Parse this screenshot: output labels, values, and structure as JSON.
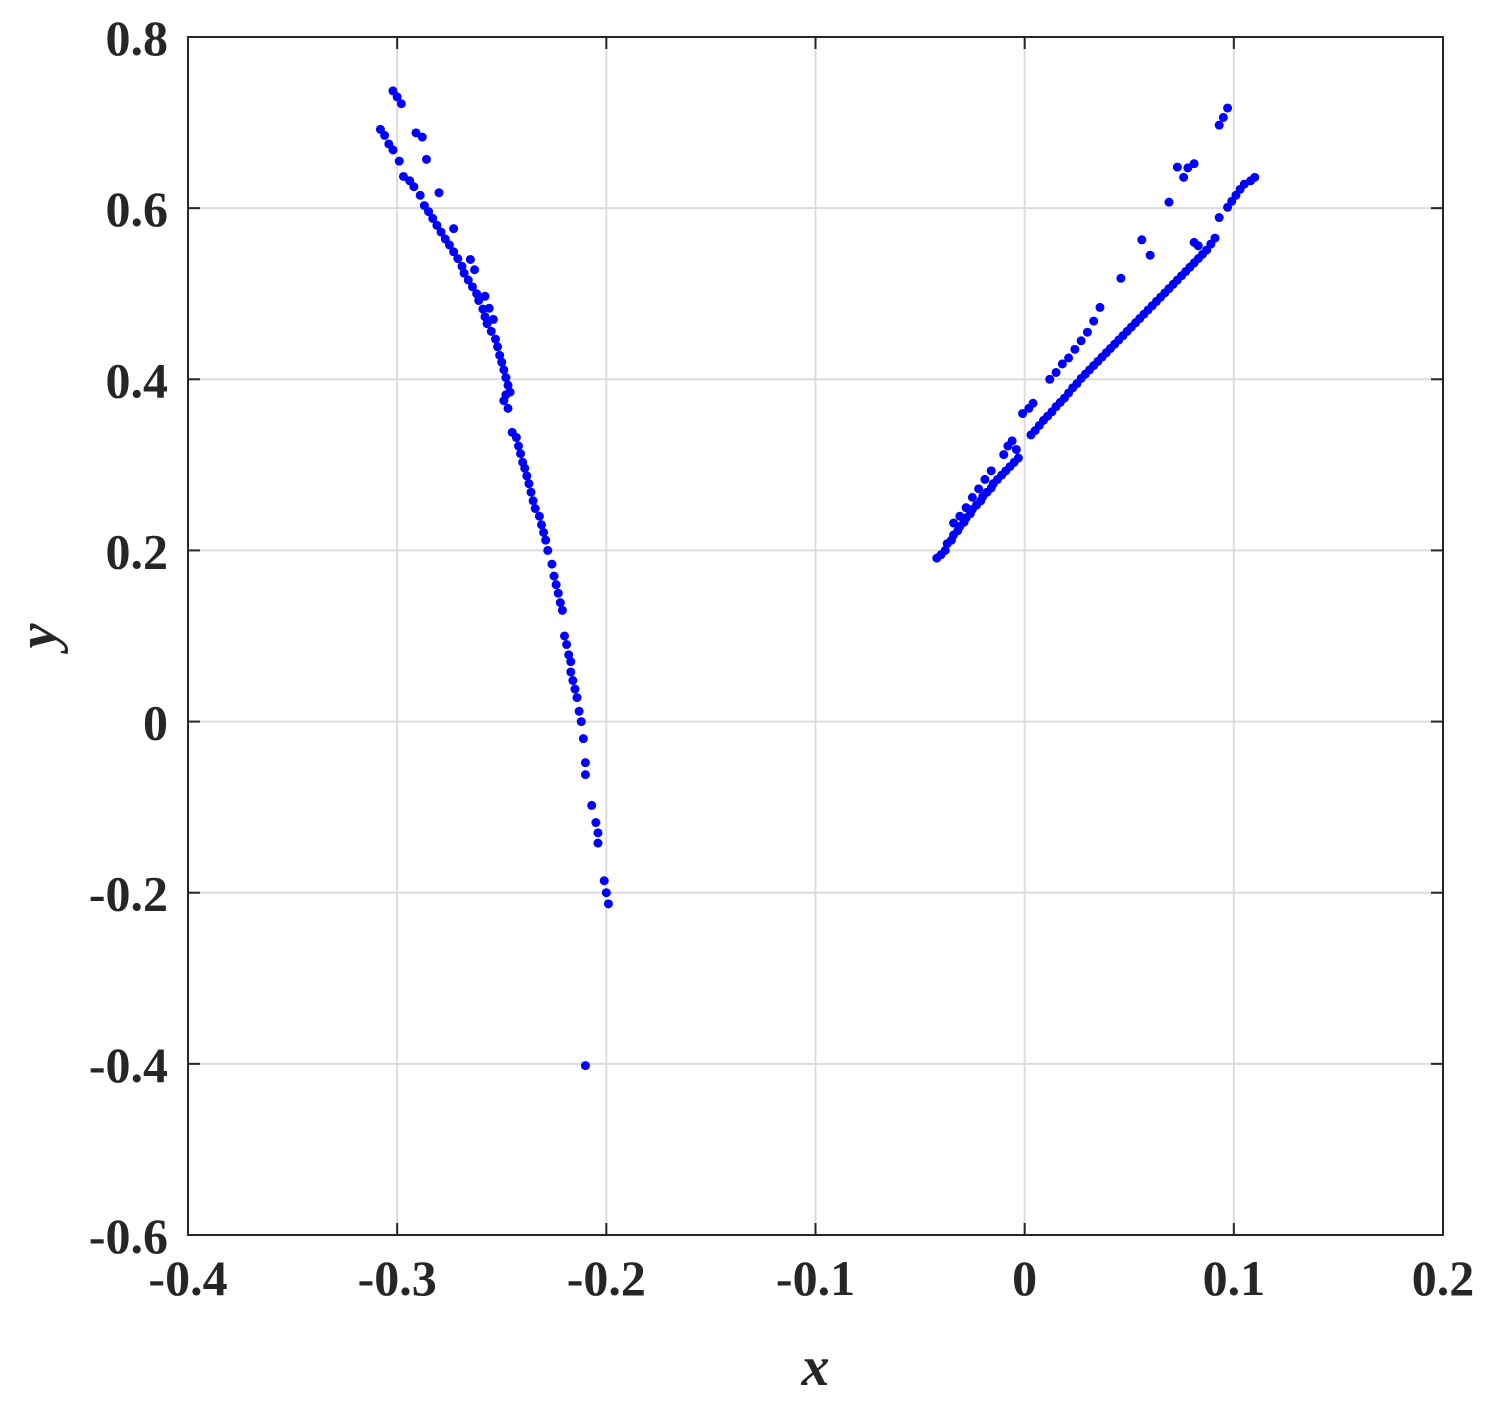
{
  "chart_data": {
    "type": "scatter",
    "xlabel": "x",
    "ylabel": "y",
    "xlim": [
      -0.4,
      0.2
    ],
    "ylim": [
      -0.6,
      0.8
    ],
    "grid": true,
    "x_ticks": [
      -0.4,
      -0.3,
      -0.2,
      -0.1,
      0,
      0.1,
      0.2
    ],
    "x_tick_labels": [
      "-0.4",
      "-0.3",
      "-0.2",
      "-0.1",
      "0",
      "0.1",
      "0.2"
    ],
    "y_ticks": [
      -0.6,
      -0.4,
      -0.2,
      0,
      0.2,
      0.4,
      0.6,
      0.8
    ],
    "y_tick_labels": [
      "-0.6",
      "-0.4",
      "-0.2",
      "0",
      "0.2",
      "0.4",
      "0.6",
      "0.8"
    ],
    "marker_color": "#0000ff",
    "series": [
      {
        "points": [
          [
            -0.302,
            0.737
          ],
          [
            -0.3,
            0.73
          ],
          [
            -0.298,
            0.722
          ],
          [
            -0.308,
            0.692
          ],
          [
            -0.306,
            0.685
          ],
          [
            -0.304,
            0.675
          ],
          [
            -0.302,
            0.668
          ],
          [
            -0.291,
            0.688
          ],
          [
            -0.288,
            0.683
          ],
          [
            -0.286,
            0.657
          ],
          [
            -0.299,
            0.655
          ],
          [
            -0.297,
            0.637
          ],
          [
            -0.294,
            0.632
          ],
          [
            -0.292,
            0.625
          ],
          [
            -0.289,
            0.615
          ],
          [
            -0.28,
            0.618
          ],
          [
            -0.287,
            0.603
          ],
          [
            -0.285,
            0.596
          ],
          [
            -0.283,
            0.588
          ],
          [
            -0.281,
            0.58
          ],
          [
            -0.279,
            0.572
          ],
          [
            -0.277,
            0.564
          ],
          [
            -0.273,
            0.576
          ],
          [
            -0.275,
            0.557
          ],
          [
            -0.273,
            0.549
          ],
          [
            -0.271,
            0.541
          ],
          [
            -0.269,
            0.532
          ],
          [
            -0.268,
            0.524
          ],
          [
            -0.266,
            0.516
          ],
          [
            -0.264,
            0.508
          ],
          [
            -0.265,
            0.54
          ],
          [
            -0.263,
            0.528
          ],
          [
            -0.262,
            0.5
          ],
          [
            -0.261,
            0.492
          ],
          [
            -0.259,
            0.482
          ],
          [
            -0.258,
            0.473
          ],
          [
            -0.257,
            0.465
          ],
          [
            -0.255,
            0.456
          ],
          [
            -0.258,
            0.497
          ],
          [
            -0.256,
            0.483
          ],
          [
            -0.254,
            0.47
          ],
          [
            -0.253,
            0.447
          ],
          [
            -0.252,
            0.438
          ],
          [
            -0.251,
            0.428
          ],
          [
            -0.25,
            0.42
          ],
          [
            -0.249,
            0.411
          ],
          [
            -0.248,
            0.402
          ],
          [
            -0.247,
            0.393
          ],
          [
            -0.248,
            0.382
          ],
          [
            -0.246,
            0.385
          ],
          [
            -0.249,
            0.375
          ],
          [
            -0.247,
            0.366
          ],
          [
            -0.245,
            0.338
          ],
          [
            -0.243,
            0.332
          ],
          [
            -0.242,
            0.322
          ],
          [
            -0.241,
            0.313
          ],
          [
            -0.24,
            0.303
          ],
          [
            -0.239,
            0.296
          ],
          [
            -0.238,
            0.287
          ],
          [
            -0.237,
            0.278
          ],
          [
            -0.236,
            0.268
          ],
          [
            -0.235,
            0.258
          ],
          [
            -0.234,
            0.249
          ],
          [
            -0.232,
            0.24
          ],
          [
            -0.231,
            0.23
          ],
          [
            -0.23,
            0.221
          ],
          [
            -0.229,
            0.212
          ],
          [
            -0.228,
            0.2
          ],
          [
            -0.226,
            0.184
          ],
          [
            -0.225,
            0.17
          ],
          [
            -0.224,
            0.16
          ],
          [
            -0.223,
            0.15
          ],
          [
            -0.222,
            0.139
          ],
          [
            -0.221,
            0.13
          ],
          [
            -0.22,
            0.1
          ],
          [
            -0.219,
            0.09
          ],
          [
            -0.218,
            0.078
          ],
          [
            -0.217,
            0.07
          ],
          [
            -0.217,
            0.058
          ],
          [
            -0.216,
            0.048
          ],
          [
            -0.215,
            0.038
          ],
          [
            -0.214,
            0.028
          ],
          [
            -0.213,
            0.012
          ],
          [
            -0.212,
            0.0
          ],
          [
            -0.211,
            -0.02
          ],
          [
            -0.21,
            -0.048
          ],
          [
            -0.21,
            -0.062
          ],
          [
            -0.207,
            -0.098
          ],
          [
            -0.205,
            -0.118
          ],
          [
            -0.204,
            -0.13
          ],
          [
            -0.204,
            -0.142
          ],
          [
            -0.201,
            -0.186
          ],
          [
            -0.2,
            -0.2
          ],
          [
            -0.199,
            -0.213
          ],
          [
            -0.21,
            -0.402
          ]
        ]
      },
      {
        "points": [
          [
            -0.042,
            0.191
          ],
          [
            -0.04,
            0.195
          ],
          [
            -0.038,
            0.2
          ],
          [
            -0.037,
            0.208
          ],
          [
            -0.035,
            0.212
          ],
          [
            -0.034,
            0.218
          ],
          [
            -0.032,
            0.223
          ],
          [
            -0.031,
            0.228
          ],
          [
            -0.029,
            0.233
          ],
          [
            -0.028,
            0.238
          ],
          [
            -0.026,
            0.243
          ],
          [
            -0.025,
            0.248
          ],
          [
            -0.023,
            0.253
          ],
          [
            -0.021,
            0.258
          ],
          [
            -0.02,
            0.263
          ],
          [
            -0.018,
            0.268
          ],
          [
            -0.016,
            0.273
          ],
          [
            -0.015,
            0.278
          ],
          [
            -0.013,
            0.283
          ],
          [
            -0.011,
            0.288
          ],
          [
            -0.009,
            0.293
          ],
          [
            -0.007,
            0.298
          ],
          [
            -0.005,
            0.303
          ],
          [
            -0.003,
            0.308
          ],
          [
            -0.034,
            0.232
          ],
          [
            -0.031,
            0.24
          ],
          [
            -0.028,
            0.25
          ],
          [
            -0.025,
            0.262
          ],
          [
            -0.022,
            0.272
          ],
          [
            -0.019,
            0.283
          ],
          [
            -0.016,
            0.293
          ],
          [
            -0.01,
            0.312
          ],
          [
            -0.008,
            0.322
          ],
          [
            -0.006,
            0.328
          ],
          [
            -0.004,
            0.318
          ],
          [
            -0.001,
            0.36
          ],
          [
            0.002,
            0.366
          ],
          [
            0.004,
            0.372
          ],
          [
            0.003,
            0.335
          ],
          [
            0.005,
            0.34
          ],
          [
            0.007,
            0.346
          ],
          [
            0.009,
            0.352
          ],
          [
            0.011,
            0.357
          ],
          [
            0.013,
            0.362
          ],
          [
            0.015,
            0.368
          ],
          [
            0.017,
            0.373
          ],
          [
            0.019,
            0.378
          ],
          [
            0.021,
            0.384
          ],
          [
            0.023,
            0.39
          ],
          [
            0.025,
            0.395
          ],
          [
            0.027,
            0.401
          ],
          [
            0.029,
            0.406
          ],
          [
            0.031,
            0.411
          ],
          [
            0.033,
            0.416
          ],
          [
            0.035,
            0.421
          ],
          [
            0.037,
            0.426
          ],
          [
            0.039,
            0.431
          ],
          [
            0.041,
            0.436
          ],
          [
            0.043,
            0.441
          ],
          [
            0.045,
            0.446
          ],
          [
            0.047,
            0.451
          ],
          [
            0.049,
            0.456
          ],
          [
            0.051,
            0.461
          ],
          [
            0.053,
            0.466
          ],
          [
            0.055,
            0.471
          ],
          [
            0.057,
            0.476
          ],
          [
            0.059,
            0.481
          ],
          [
            0.061,
            0.486
          ],
          [
            0.063,
            0.491
          ],
          [
            0.065,
            0.496
          ],
          [
            0.067,
            0.501
          ],
          [
            0.069,
            0.506
          ],
          [
            0.071,
            0.511
          ],
          [
            0.073,
            0.516
          ],
          [
            0.075,
            0.521
          ],
          [
            0.077,
            0.526
          ],
          [
            0.079,
            0.531
          ],
          [
            0.081,
            0.536
          ],
          [
            0.083,
            0.541
          ],
          [
            0.085,
            0.546
          ],
          [
            0.087,
            0.551
          ],
          [
            0.089,
            0.558
          ],
          [
            0.091,
            0.565
          ],
          [
            0.093,
            0.589
          ],
          [
            0.012,
            0.4
          ],
          [
            0.015,
            0.408
          ],
          [
            0.018,
            0.418
          ],
          [
            0.021,
            0.425
          ],
          [
            0.024,
            0.435
          ],
          [
            0.027,
            0.445
          ],
          [
            0.03,
            0.455
          ],
          [
            0.033,
            0.468
          ],
          [
            0.036,
            0.484
          ],
          [
            0.046,
            0.518
          ],
          [
            0.056,
            0.563
          ],
          [
            0.06,
            0.545
          ],
          [
            0.069,
            0.607
          ],
          [
            0.073,
            0.648
          ],
          [
            0.076,
            0.636
          ],
          [
            0.078,
            0.647
          ],
          [
            0.081,
            0.652
          ],
          [
            0.081,
            0.56
          ],
          [
            0.083,
            0.556
          ],
          [
            0.093,
            0.697
          ],
          [
            0.095,
            0.706
          ],
          [
            0.097,
            0.717
          ],
          [
            0.097,
            0.601
          ],
          [
            0.099,
            0.608
          ],
          [
            0.101,
            0.615
          ],
          [
            0.103,
            0.622
          ],
          [
            0.105,
            0.628
          ],
          [
            0.108,
            0.632
          ],
          [
            0.11,
            0.636
          ]
        ]
      }
    ]
  }
}
